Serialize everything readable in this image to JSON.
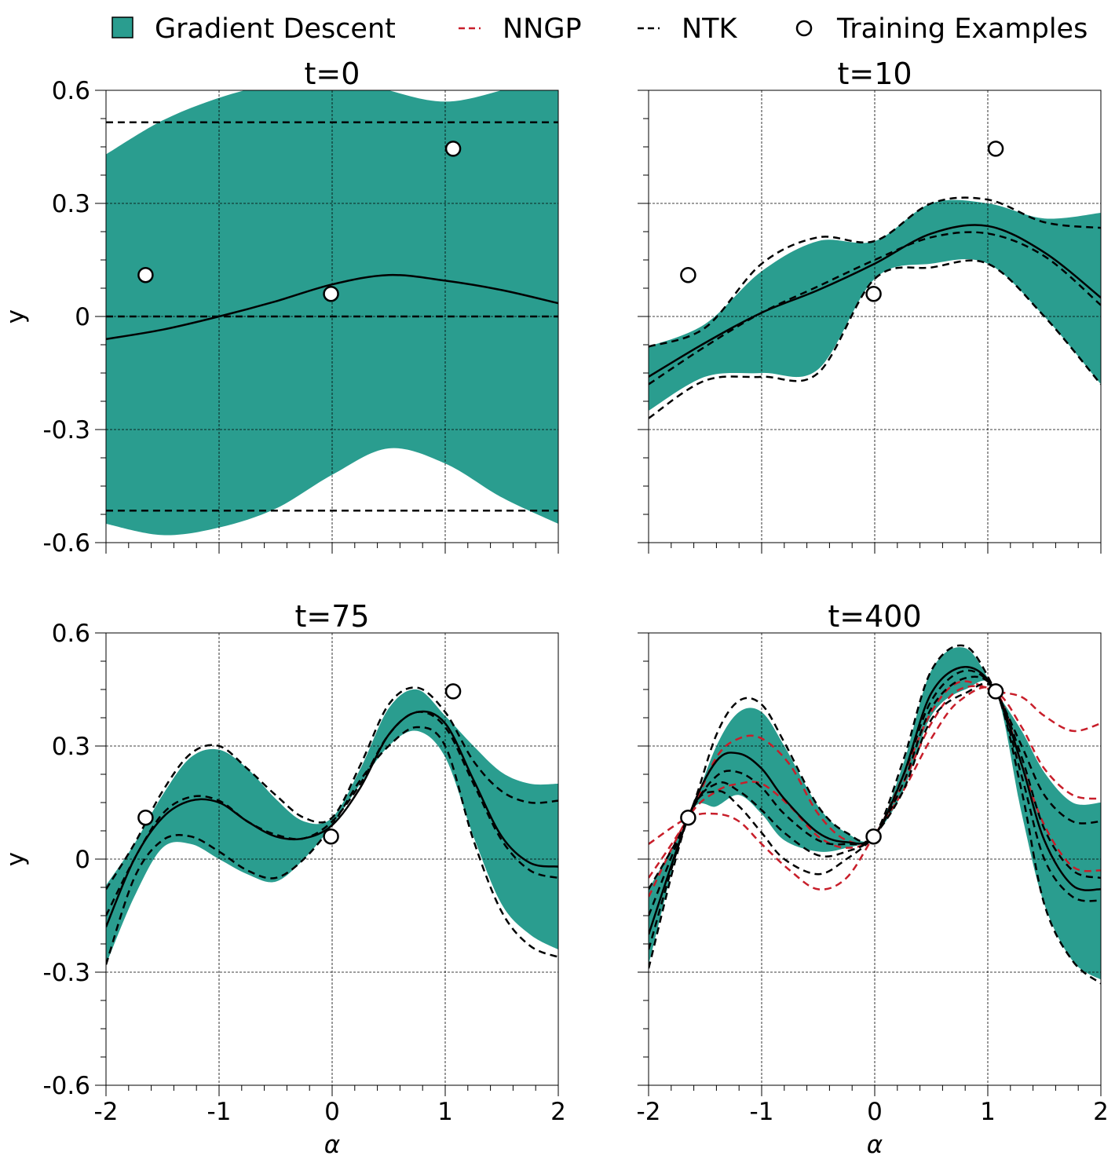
{
  "legend": {
    "gd": "Gradient Descent",
    "nngp": "NNGP",
    "ntk": "NTK",
    "train": "Training Examples"
  },
  "colors": {
    "gd_fill": "#2a9d8f",
    "nngp": "#c81e2a",
    "ntk": "#000000",
    "grid": "#000000"
  },
  "chart_data": [
    {
      "type": "line",
      "title": "t=0",
      "xlabel": "",
      "ylabel": "y",
      "xlim": [
        -2,
        2
      ],
      "ylim": [
        -0.6,
        0.6
      ],
      "xticks": [
        "-2",
        "-1",
        "0",
        "1",
        "2"
      ],
      "yticks": [
        "-0.6",
        "-0.3",
        "0",
        "0.3",
        "0.6"
      ],
      "show_xticklabels": false,
      "show_yticklabels": true,
      "grid": true,
      "training_examples": {
        "x": [
          -1.65,
          -0.01,
          1.07
        ],
        "y": [
          0.11,
          0.06,
          0.445
        ]
      },
      "gd_band": {
        "x": [
          -2,
          -1.5,
          -1,
          -0.5,
          0,
          0.5,
          1,
          1.5,
          2
        ],
        "upper": [
          0.43,
          0.52,
          0.58,
          0.62,
          0.65,
          0.6,
          0.57,
          0.6,
          0.65
        ],
        "lower": [
          -0.55,
          -0.58,
          -0.56,
          -0.51,
          -0.42,
          -0.35,
          -0.39,
          -0.48,
          -0.55
        ]
      },
      "ntk_mean": {
        "x": [
          -2,
          -1.5,
          -1,
          -0.5,
          0,
          0.5,
          1,
          1.5,
          2
        ],
        "y": [
          -0.06,
          -0.035,
          0.0,
          0.04,
          0.085,
          0.11,
          0.095,
          0.07,
          0.035
        ]
      },
      "ntk_bands": [
        {
          "x": [
            -2,
            2
          ],
          "y": [
            0.515,
            0.515
          ]
        },
        {
          "x": [
            -2,
            2
          ],
          "y": [
            0.0,
            0.0
          ]
        },
        {
          "x": [
            -2,
            2
          ],
          "y": [
            -0.515,
            -0.515
          ]
        }
      ],
      "nngp_bands": []
    },
    {
      "type": "line",
      "title": "t=10",
      "xlabel": "",
      "ylabel": "",
      "xlim": [
        -2,
        2
      ],
      "ylim": [
        -0.6,
        0.6
      ],
      "xticks": [
        "-2",
        "-1",
        "0",
        "1",
        "2"
      ],
      "yticks": [
        "-0.6",
        "-0.3",
        "0",
        "0.3",
        "0.6"
      ],
      "show_xticklabels": false,
      "show_yticklabels": false,
      "grid": true,
      "training_examples": {
        "x": [
          -1.65,
          -0.01,
          1.07
        ],
        "y": [
          0.11,
          0.06,
          0.445
        ]
      },
      "gd_band": {
        "x": [
          -2,
          -1.5,
          -1,
          -0.5,
          0,
          0.5,
          1,
          1.5,
          2
        ],
        "upper": [
          -0.08,
          -0.02,
          0.12,
          0.2,
          0.2,
          0.3,
          0.3,
          0.26,
          0.275
        ],
        "lower": [
          -0.25,
          -0.16,
          -0.15,
          -0.14,
          0.1,
          0.14,
          0.14,
          0.0,
          -0.18
        ]
      },
      "ntk_mean": {
        "x": [
          -2,
          -1.5,
          -1,
          -0.5,
          0,
          0.5,
          1,
          1.5,
          2
        ],
        "y": [
          -0.16,
          -0.07,
          0.01,
          0.07,
          0.14,
          0.22,
          0.24,
          0.17,
          0.05
        ]
      },
      "ntk_bands": [
        {
          "x": [
            -2,
            -1.5,
            -1,
            -0.5,
            0,
            0.5,
            1,
            1.5,
            2
          ],
          "y": [
            -0.08,
            -0.03,
            0.14,
            0.21,
            0.2,
            0.3,
            0.31,
            0.25,
            0.235
          ]
        },
        {
          "x": [
            -2,
            -1.5,
            -1,
            -0.5,
            0,
            0.5,
            1,
            1.5,
            2
          ],
          "y": [
            -0.18,
            -0.08,
            0.01,
            0.08,
            0.15,
            0.21,
            0.22,
            0.16,
            0.03
          ]
        },
        {
          "x": [
            -2,
            -1.5,
            -1,
            -0.5,
            0,
            0.5,
            1,
            1.5,
            2
          ],
          "y": [
            -0.27,
            -0.17,
            -0.16,
            -0.15,
            0.1,
            0.13,
            0.14,
            0.0,
            -0.18
          ]
        }
      ],
      "nngp_bands": []
    },
    {
      "type": "line",
      "title": "t=75",
      "xlabel": "α",
      "ylabel": "y",
      "xlim": [
        -2,
        2
      ],
      "ylim": [
        -0.6,
        0.6
      ],
      "xticks": [
        "-2",
        "-1",
        "0",
        "1",
        "2"
      ],
      "yticks": [
        "-0.6",
        "-0.3",
        "0",
        "0.3",
        "0.6"
      ],
      "show_xticklabels": true,
      "show_yticklabels": true,
      "grid": true,
      "training_examples": {
        "x": [
          -1.65,
          -0.01,
          1.07
        ],
        "y": [
          0.11,
          0.06,
          0.445
        ]
      },
      "gd_band": {
        "x": [
          -2,
          -1.75,
          -1.5,
          -1.25,
          -1,
          -0.75,
          -0.5,
          -0.25,
          0,
          0.25,
          0.5,
          0.75,
          1,
          1.25,
          1.5,
          1.75,
          2
        ],
        "upper": [
          -0.07,
          0.04,
          0.17,
          0.27,
          0.29,
          0.24,
          0.16,
          0.1,
          0.11,
          0.24,
          0.4,
          0.45,
          0.38,
          0.3,
          0.23,
          0.2,
          0.2
        ],
        "lower": [
          -0.28,
          -0.1,
          0.03,
          0.04,
          0.0,
          -0.04,
          -0.06,
          0.0,
          0.09,
          0.2,
          0.3,
          0.34,
          0.27,
          0.06,
          -0.12,
          -0.2,
          -0.24
        ]
      },
      "ntk_mean": {
        "x": [
          -2,
          -1.75,
          -1.5,
          -1.25,
          -1,
          -0.75,
          -0.5,
          -0.25,
          0,
          0.25,
          0.5,
          0.75,
          1,
          1.25,
          1.5,
          1.75,
          2
        ],
        "y": [
          -0.18,
          0.0,
          0.11,
          0.155,
          0.15,
          0.1,
          0.06,
          0.055,
          0.09,
          0.19,
          0.33,
          0.39,
          0.36,
          0.21,
          0.06,
          -0.01,
          -0.02
        ]
      },
      "ntk_bands": [
        {
          "x": [
            -2,
            -1.75,
            -1.5,
            -1.25,
            -1,
            -0.75,
            -0.5,
            -0.25,
            0,
            0.25,
            0.5,
            0.75,
            1,
            1.25,
            1.5,
            1.75,
            2
          ],
          "y": [
            -0.08,
            0.04,
            0.18,
            0.28,
            0.3,
            0.24,
            0.17,
            0.11,
            0.11,
            0.25,
            0.41,
            0.455,
            0.39,
            0.26,
            0.18,
            0.15,
            0.155
          ]
        },
        {
          "x": [
            -2,
            -1.75,
            -1.5,
            -1.25,
            -1,
            -0.75,
            -0.5,
            -0.25,
            0,
            0.25,
            0.5,
            0.75,
            1,
            1.25,
            1.5,
            1.75,
            2
          ],
          "y": [
            -0.15,
            0.0,
            0.12,
            0.165,
            0.155,
            0.1,
            0.065,
            0.055,
            0.1,
            0.2,
            0.33,
            0.39,
            0.35,
            0.2,
            0.05,
            -0.03,
            -0.05
          ]
        },
        {
          "x": [
            -2,
            -1.75,
            -1.5,
            -1.25,
            -1,
            -0.75,
            -0.5,
            -0.25,
            0,
            0.25,
            0.5,
            0.75,
            1,
            1.25,
            1.5,
            1.75,
            2
          ],
          "y": [
            -0.28,
            -0.05,
            0.05,
            0.06,
            0.02,
            -0.03,
            -0.05,
            0.0,
            0.09,
            0.21,
            0.3,
            0.35,
            0.3,
            0.05,
            -0.14,
            -0.23,
            -0.26
          ]
        }
      ],
      "nngp_bands": []
    },
    {
      "type": "line",
      "title": "t=400",
      "xlabel": "α",
      "ylabel": "",
      "xlim": [
        -2,
        2
      ],
      "ylim": [
        -0.6,
        0.6
      ],
      "xticks": [
        "-2",
        "-1",
        "0",
        "1",
        "2"
      ],
      "yticks": [
        "-0.6",
        "-0.3",
        "0",
        "0.3",
        "0.6"
      ],
      "show_xticklabels": true,
      "show_yticklabels": false,
      "grid": true,
      "training_examples": {
        "x": [
          -1.65,
          -0.01,
          1.07
        ],
        "y": [
          0.11,
          0.06,
          0.445
        ]
      },
      "gd_band": {
        "x": [
          -2,
          -1.65,
          -1.4,
          -1.2,
          -1.0,
          -0.8,
          -0.5,
          -0.25,
          -0.01,
          0.25,
          0.5,
          0.8,
          1.07,
          1.3,
          1.5,
          1.75,
          2
        ],
        "upper": [
          -0.08,
          0.11,
          0.3,
          0.39,
          0.39,
          0.3,
          0.14,
          0.07,
          0.06,
          0.25,
          0.5,
          0.56,
          0.445,
          0.34,
          0.23,
          0.15,
          0.15
        ],
        "lower": [
          -0.28,
          0.11,
          0.14,
          0.17,
          0.12,
          0.05,
          0.02,
          0.03,
          0.06,
          0.18,
          0.38,
          0.45,
          0.445,
          0.12,
          -0.12,
          -0.27,
          -0.32
        ]
      },
      "ntk_mean": {
        "x": [
          -2,
          -1.65,
          -1.4,
          -1.2,
          -1.0,
          -0.8,
          -0.5,
          -0.25,
          -0.01,
          0.25,
          0.5,
          0.8,
          1.07,
          1.3,
          1.5,
          1.75,
          2
        ],
        "y": [
          -0.2,
          0.11,
          0.26,
          0.28,
          0.24,
          0.16,
          0.07,
          0.045,
          0.06,
          0.22,
          0.44,
          0.51,
          0.445,
          0.25,
          0.05,
          -0.07,
          -0.08
        ]
      },
      "ntk_bands": [
        {
          "x": [
            -2,
            -1.65,
            -1.4,
            -1.2,
            -1.0,
            -0.8,
            -0.5,
            -0.25,
            -0.01,
            0.25,
            0.5,
            0.8,
            1.07,
            1.3,
            1.5,
            1.75,
            2
          ],
          "y": [
            -0.08,
            0.11,
            0.33,
            0.42,
            0.41,
            0.31,
            0.14,
            0.07,
            0.06,
            0.26,
            0.5,
            0.565,
            0.445,
            0.3,
            0.17,
            0.1,
            0.1
          ]
        },
        {
          "x": [
            -2,
            -1.65,
            -1.4,
            -1.2,
            -1.0,
            -0.8,
            -0.5,
            -0.25,
            -0.01,
            0.25,
            0.5,
            0.8,
            1.07,
            1.3,
            1.5,
            1.75,
            2
          ],
          "y": [
            -0.15,
            0.11,
            0.22,
            0.23,
            0.19,
            0.12,
            0.05,
            0.04,
            0.06,
            0.22,
            0.42,
            0.5,
            0.445,
            0.27,
            0.08,
            -0.03,
            -0.05
          ]
        },
        {
          "x": [
            -2,
            -1.65,
            -1.4,
            -1.2,
            -1.0,
            -0.8,
            -0.5,
            -0.25,
            -0.01,
            0.25,
            0.5,
            0.8,
            1.07,
            1.3,
            1.5,
            1.75,
            2
          ],
          "y": [
            -0.24,
            0.11,
            0.2,
            0.18,
            0.13,
            0.07,
            0.01,
            0.02,
            0.06,
            0.2,
            0.4,
            0.48,
            0.445,
            0.22,
            0.0,
            -0.1,
            -0.11
          ]
        },
        {
          "x": [
            -2,
            -1.65,
            -1.4,
            -1.2,
            -1.0,
            -0.8,
            -0.5,
            -0.25,
            -0.01,
            0.25,
            0.5,
            0.8,
            1.07,
            1.3,
            1.5,
            1.75,
            2
          ],
          "y": [
            -0.29,
            0.11,
            0.18,
            0.14,
            0.07,
            0.0,
            -0.04,
            0.0,
            0.06,
            0.18,
            0.37,
            0.44,
            0.445,
            0.18,
            -0.12,
            -0.27,
            -0.33
          ]
        }
      ],
      "nngp_bands": [
        {
          "x": [
            -2,
            -1.65,
            -1.4,
            -1.2,
            -1.0,
            -0.75,
            -0.5,
            -0.25,
            -0.01,
            0.25,
            0.5,
            0.75,
            1.07,
            1.3,
            1.5,
            1.75,
            2
          ],
          "y": [
            -0.05,
            0.11,
            0.27,
            0.32,
            0.32,
            0.25,
            0.12,
            0.05,
            0.06,
            0.22,
            0.39,
            0.47,
            0.445,
            0.43,
            0.38,
            0.34,
            0.36
          ]
        },
        {
          "x": [
            -2,
            -1.65,
            -1.4,
            -1.2,
            -1.0,
            -0.75,
            -0.5,
            -0.25,
            -0.01,
            0.25,
            0.5,
            0.75,
            1.07,
            1.3,
            1.5,
            1.75,
            2
          ],
          "y": [
            -0.1,
            0.11,
            0.18,
            0.2,
            0.2,
            0.14,
            0.06,
            0.03,
            0.06,
            0.2,
            0.36,
            0.45,
            0.445,
            0.35,
            0.24,
            0.17,
            0.16
          ]
        },
        {
          "x": [
            -2,
            -1.65,
            -1.4,
            -1.2,
            -1.0,
            -0.75,
            -0.5,
            -0.25,
            -0.01,
            0.25,
            0.5,
            0.75,
            1.07,
            1.3,
            1.5,
            1.75,
            2
          ],
          "y": [
            0.04,
            0.11,
            0.12,
            0.1,
            0.04,
            -0.03,
            -0.08,
            -0.05,
            0.06,
            0.18,
            0.32,
            0.42,
            0.445,
            0.25,
            0.09,
            -0.02,
            -0.03
          ]
        }
      ]
    }
  ]
}
